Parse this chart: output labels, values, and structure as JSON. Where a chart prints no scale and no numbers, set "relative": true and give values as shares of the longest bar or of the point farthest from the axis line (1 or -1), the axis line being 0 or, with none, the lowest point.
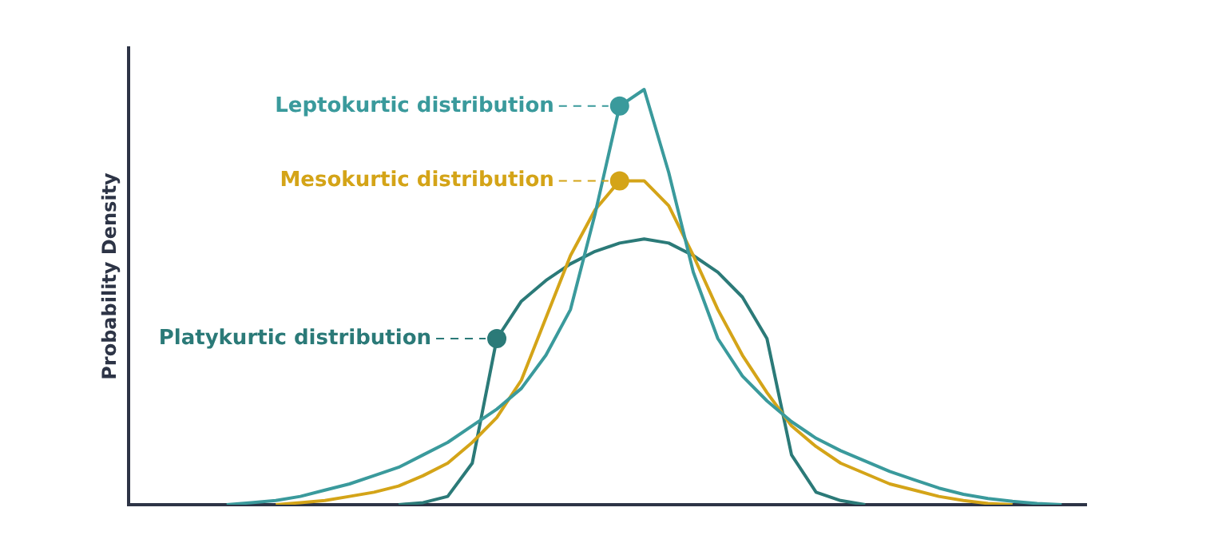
{
  "chart_data": {
    "type": "line",
    "relative": true,
    "ylabel": "Probability Density",
    "legend": "top left",
    "grid": false,
    "marker": "none",
    "line_style": "solid",
    "categories": [
      null,
      null,
      null,
      null,
      null,
      null,
      null,
      null,
      null,
      null,
      null,
      null,
      null,
      null,
      null,
      null,
      null,
      null,
      null,
      null,
      null,
      null,
      null,
      null,
      null,
      null,
      null,
      null,
      null,
      null,
      null,
      null,
      null,
      null,
      null,
      null,
      null,
      null,
      null,
      null
    ],
    "series": [
      {
        "name": "Leptokurtic distribution",
        "color": "#3a9a9c",
        "values": [
          null,
          null,
          null,
          null,
          0,
          0.005,
          0.01,
          0.02,
          0.035,
          0.05,
          0.07,
          0.09,
          0.12,
          0.15,
          0.19,
          0.23,
          0.28,
          0.36,
          0.47,
          0.7,
          0.96,
          1,
          0.8,
          0.56,
          0.4,
          0.31,
          0.25,
          0.2,
          0.16,
          0.13,
          0.105,
          0.08,
          0.06,
          0.04,
          0.025,
          0.015,
          0.008,
          0.003,
          0,
          null
        ]
      },
      {
        "name": "Mesokurtic distribution",
        "color": "#d4a418",
        "values": [
          null,
          null,
          null,
          null,
          null,
          null,
          0,
          0.005,
          0.01,
          0.02,
          0.03,
          0.045,
          0.07,
          0.1,
          0.15,
          0.21,
          0.3,
          0.45,
          0.6,
          0.71,
          0.78,
          0.78,
          0.72,
          0.6,
          0.47,
          0.36,
          0.27,
          0.19,
          0.14,
          0.1,
          0.075,
          0.05,
          0.035,
          0.02,
          0.01,
          0.003,
          0,
          null,
          null,
          null
        ]
      },
      {
        "name": "Platykurtic distribution",
        "color": "#2b7a78",
        "values": [
          null,
          null,
          null,
          null,
          null,
          null,
          null,
          null,
          null,
          null,
          null,
          0,
          0.005,
          0.02,
          0.1,
          0.4,
          0.49,
          0.54,
          0.58,
          0.61,
          0.63,
          0.64,
          0.63,
          0.6,
          0.56,
          0.5,
          0.4,
          0.12,
          0.03,
          0.01,
          0,
          null,
          null,
          null,
          null,
          null,
          null,
          null,
          null,
          null
        ]
      }
    ]
  }
}
